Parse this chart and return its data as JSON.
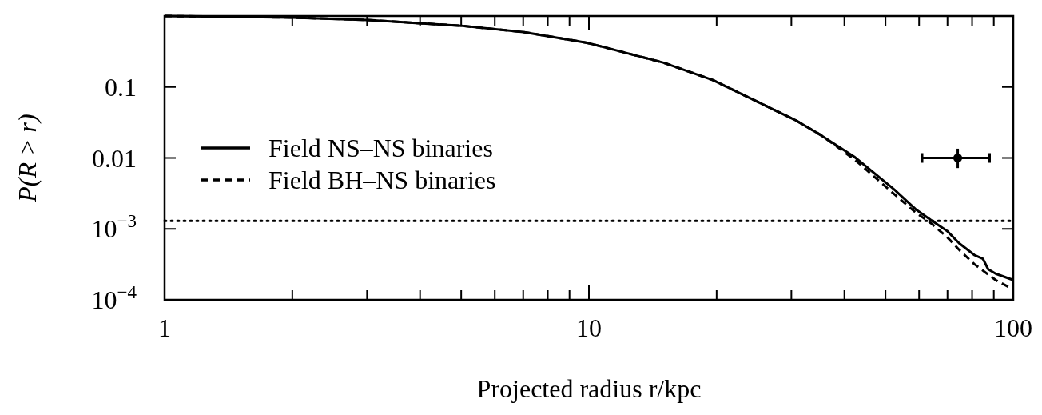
{
  "chart_data": {
    "type": "line",
    "xlabel": "Projected radius r/kpc",
    "ylabel": "P(R > r)",
    "log": "xy",
    "xlim": [
      1,
      100
    ],
    "ylim": [
      0.0001,
      1
    ],
    "xticks": [
      1,
      {
        "value": 2,
        "label": null
      },
      {
        "value": 3,
        "label": null
      },
      {
        "value": 4,
        "label": null
      },
      {
        "value": 5,
        "label": null
      },
      {
        "value": 6,
        "label": null
      },
      {
        "value": 7,
        "label": null
      },
      {
        "value": 8,
        "label": null
      },
      {
        "value": 9,
        "label": null
      },
      10,
      {
        "value": 20,
        "label": null
      },
      {
        "value": 30,
        "label": null
      },
      {
        "value": 40,
        "label": null
      },
      {
        "value": 50,
        "label": null
      },
      {
        "value": 60,
        "label": null
      },
      {
        "value": 70,
        "label": null
      },
      {
        "value": 80,
        "label": null
      },
      {
        "value": 90,
        "label": null
      },
      100
    ],
    "yticks": [
      {
        "value": 0.0001,
        "label": "10$^{−4}$"
      },
      {
        "value": 0.001,
        "label": "10$^{−3}$"
      },
      0.01,
      0.1
    ],
    "grid": false,
    "legend": "left",
    "marker": "none",
    "series": [
      {
        "name": "Field NS–NS binaries",
        "color": "#000000",
        "line_style": "solid",
        "x": [
          1,
          2,
          3,
          5,
          7,
          9.9,
          15,
          19.6,
          30.7,
          35.2,
          42.2,
          52.4,
          58.9,
          64,
          69.8,
          74.5,
          80.9,
          84.8,
          87.3,
          90.9,
          100
        ],
        "values": [
          1,
          0.95,
          0.88,
          0.73,
          0.595,
          0.42,
          0.22,
          0.125,
          0.034,
          0.021,
          0.0104,
          0.0036,
          0.00189,
          0.00133,
          0.00094,
          0.00063,
          0.00043,
          0.00038,
          0.00027,
          0.000234,
          0.00019
        ]
      },
      {
        "name": "Field BH–NS binaries",
        "color": "#000000",
        "line_style": "dashed",
        "x": [
          1,
          2,
          3,
          5,
          7,
          9.9,
          15,
          19.6,
          30.7,
          35.2,
          42.2,
          52.4,
          58.9,
          64,
          69.8,
          74.5,
          80.9,
          90.9,
          100
        ],
        "values": [
          1,
          0.95,
          0.88,
          0.73,
          0.595,
          0.42,
          0.22,
          0.125,
          0.034,
          0.021,
          0.0096,
          0.0031,
          0.0017,
          0.0012,
          0.00077,
          0.00051,
          0.00032,
          0.00019,
          0.00014
        ]
      },
      {
        "type": "scatter",
        "color": "#000000",
        "marker": "circle",
        "x": [
          74
        ],
        "values": [
          0.01
        ],
        "errors": [
          [
            0.0072,
            0.0135
          ]
        ],
        "xerrors": [
          [
            61,
            88
          ]
        ]
      }
    ],
    "ref_lines": [
      {
        "axis": "y",
        "value": 0.0013,
        "line_style": "dotted",
        "color": "#000000"
      }
    ]
  }
}
